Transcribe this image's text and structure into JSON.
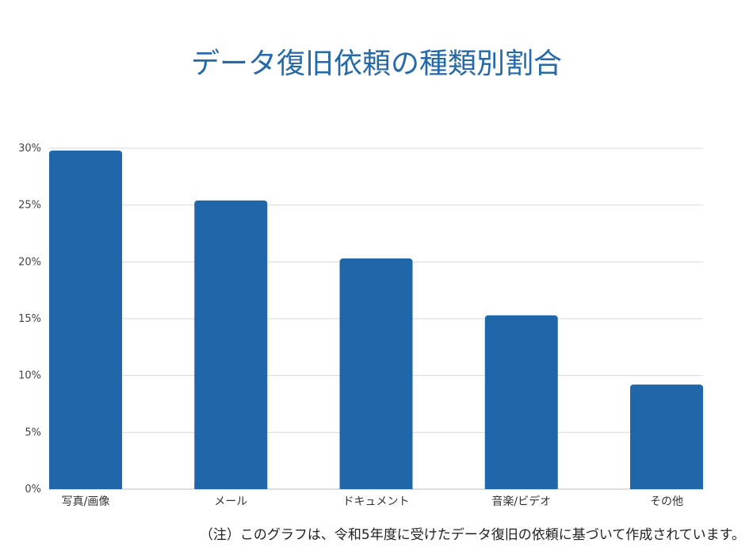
{
  "chart_data": {
    "type": "bar",
    "title": "データ復旧依頼の種類別割合",
    "categories": [
      "写真/画像",
      "メール",
      "ドキュメント",
      "音楽/ビデオ",
      "その他"
    ],
    "values": [
      29.8,
      25.4,
      20.3,
      15.3,
      9.2
    ],
    "ylim": [
      0,
      30
    ],
    "yticks": [
      0,
      5,
      10,
      15,
      20,
      25,
      30
    ],
    "ytick_labels": [
      "0%",
      "5%",
      "10%",
      "15%",
      "20%",
      "25%",
      "30%"
    ],
    "xlabel": "",
    "ylabel": "",
    "grid": true,
    "bar_color": "#1f67a8",
    "title_color": "#2469a8"
  },
  "footnote": "（注）このグラフは、令和5年度に受けたデータ復旧の依頼に基づいて作成されています。"
}
